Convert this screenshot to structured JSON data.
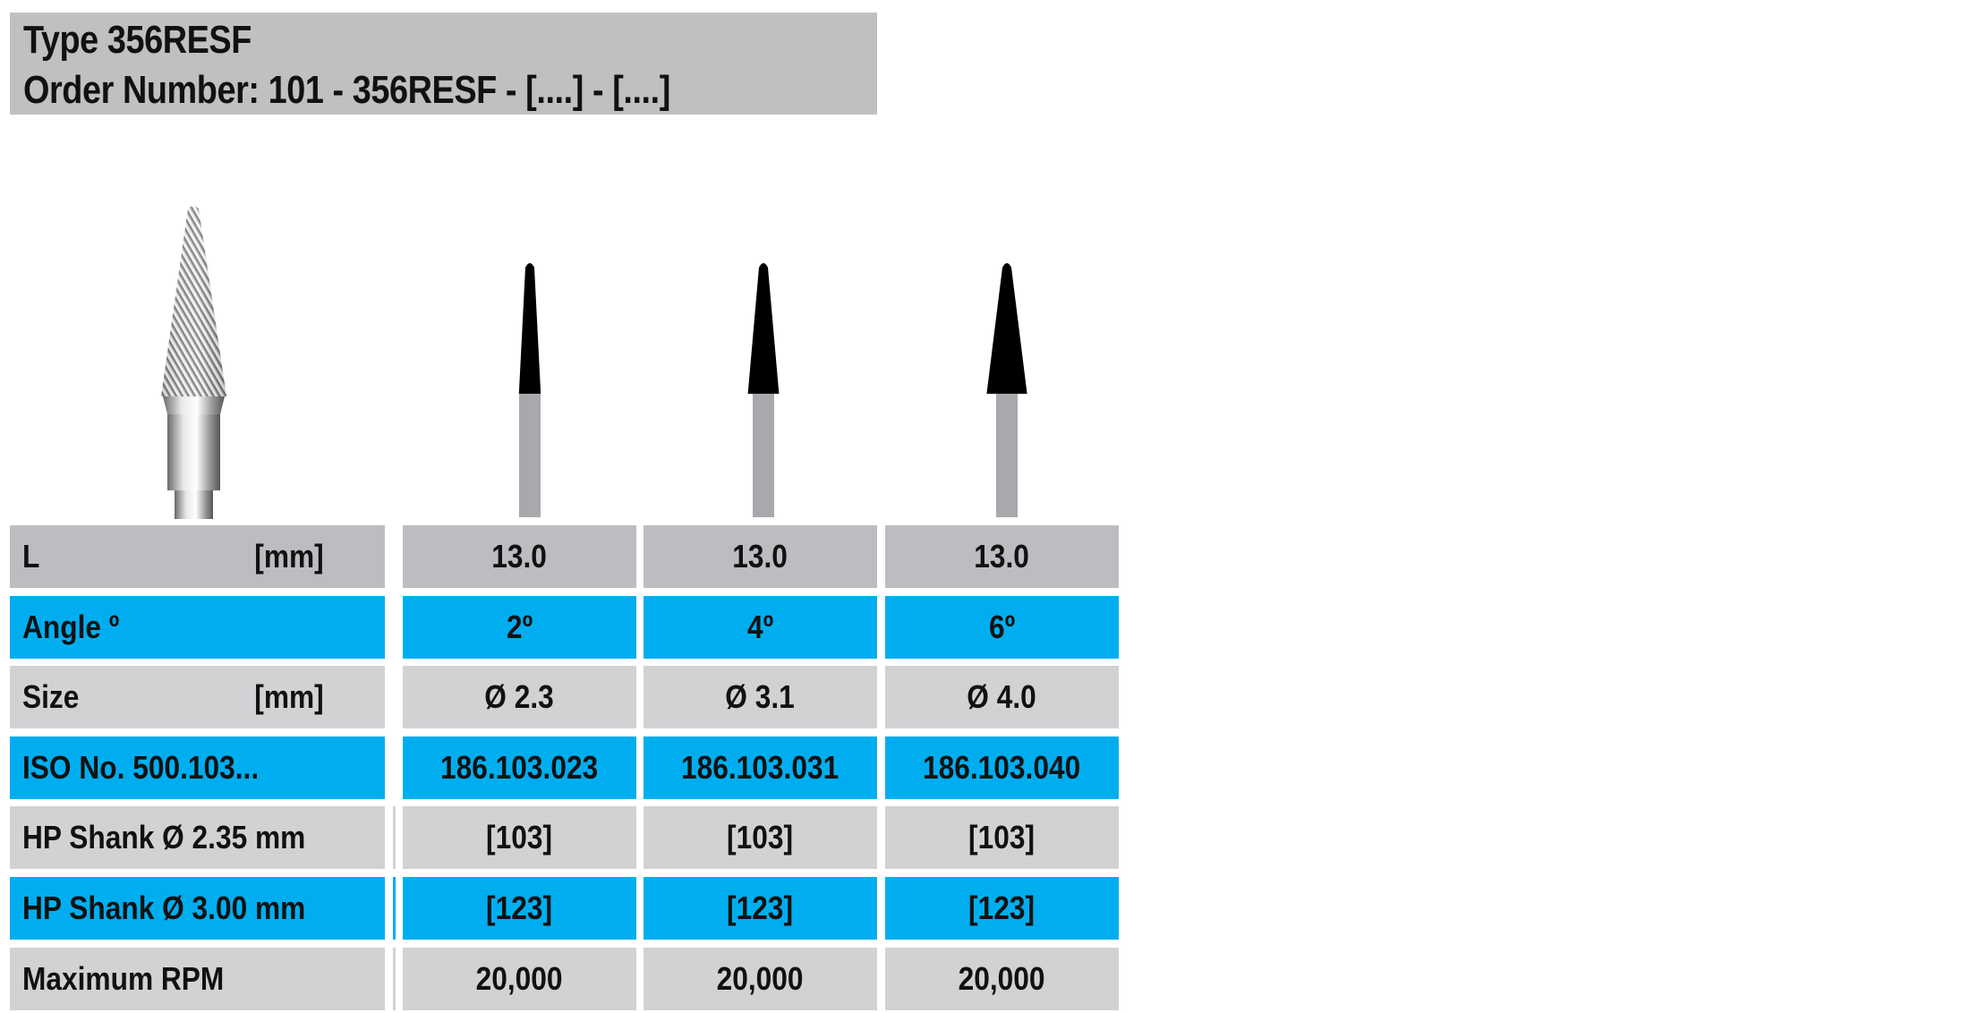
{
  "header": {
    "type_line": "Type 356RESF",
    "order_line": "Order Number: 101 - 356RESF -  [....] - [....]"
  },
  "colors": {
    "header_grey": "#bfc0c2",
    "row_grey": "#d1d2d4",
    "row_blue": "#00aeef"
  },
  "images": {
    "product": "carbide-burr-photo",
    "variants": [
      {
        "angle_deg": 2
      },
      {
        "angle_deg": 4
      },
      {
        "angle_deg": 6
      }
    ]
  },
  "table": {
    "rows": [
      {
        "label": "L",
        "unit": "[mm]",
        "style": "grey1",
        "values": [
          "13.0",
          "13.0",
          "13.0"
        ]
      },
      {
        "label": "Angle º",
        "unit": "",
        "style": "blue",
        "values": [
          "2º",
          "4º",
          "6º"
        ]
      },
      {
        "label": "Size",
        "unit": "[mm]",
        "style": "grey",
        "values": [
          "Ø 2.3",
          "Ø 3.1",
          "Ø 4.0"
        ]
      },
      {
        "label": "ISO No.  500.103...",
        "unit": "",
        "style": "blue",
        "values": [
          "186.103.023",
          "186.103.031",
          "186.103.040"
        ]
      },
      {
        "label": "HP Shank Ø 2.35 mm",
        "unit": "",
        "style": "grey",
        "values": [
          "[103]",
          "[103]",
          "[103]"
        ]
      },
      {
        "label": "HP Shank Ø 3.00 mm",
        "unit": "",
        "style": "blue",
        "values": [
          "[123]",
          "[123]",
          "[123]"
        ]
      },
      {
        "label": "Maximum  RPM",
        "unit": "",
        "style": "grey",
        "values": [
          "20,000",
          "20,000",
          "20,000"
        ]
      }
    ]
  }
}
